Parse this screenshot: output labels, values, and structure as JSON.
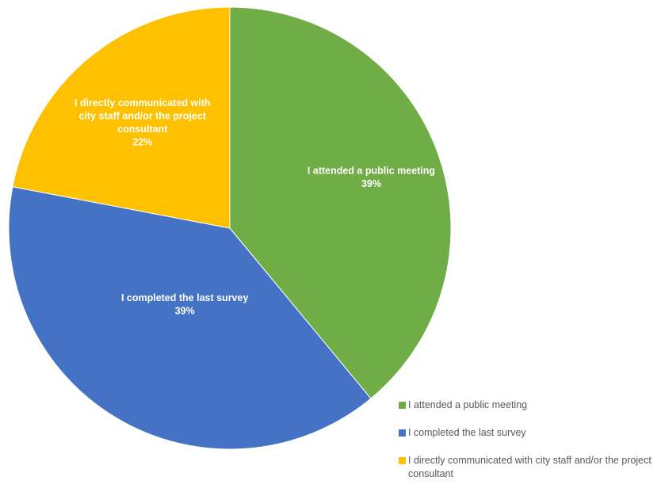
{
  "chart_data": {
    "type": "pie",
    "title": "",
    "slices": [
      {
        "label": "I attended a public meeting",
        "value": 39,
        "display": "39%",
        "color": "#70ad47"
      },
      {
        "label": "I completed the last survey",
        "value": 39,
        "display": "39%",
        "color": "#4472c4"
      },
      {
        "label": "I directly communicated with city staff and/or the project consultant",
        "value": 22,
        "display": "22%",
        "color": "#ffc000"
      }
    ],
    "legend_position": "bottom-right"
  }
}
